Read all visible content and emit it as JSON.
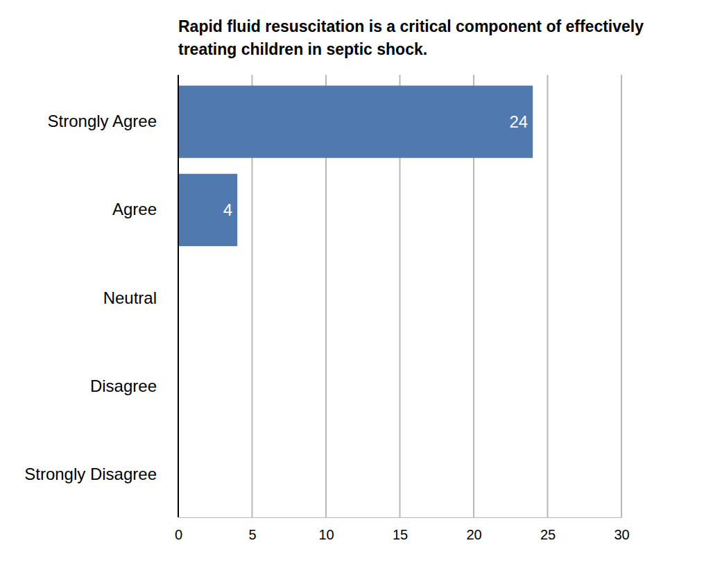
{
  "chart_data": {
    "type": "bar",
    "orientation": "horizontal",
    "title": "Rapid fluid resuscitation is a critical component of effectively treating children in septic shock.",
    "categories": [
      "Strongly Agree",
      "Agree",
      "Neutral",
      "Disagree",
      "Strongly Disagree"
    ],
    "values": [
      24,
      4,
      0,
      0,
      0
    ],
    "color": "#5079b0",
    "xlim": [
      0,
      30
    ],
    "xticks": [
      0,
      5,
      10,
      15,
      20,
      25,
      30
    ],
    "grid": true,
    "data_labels": true
  }
}
